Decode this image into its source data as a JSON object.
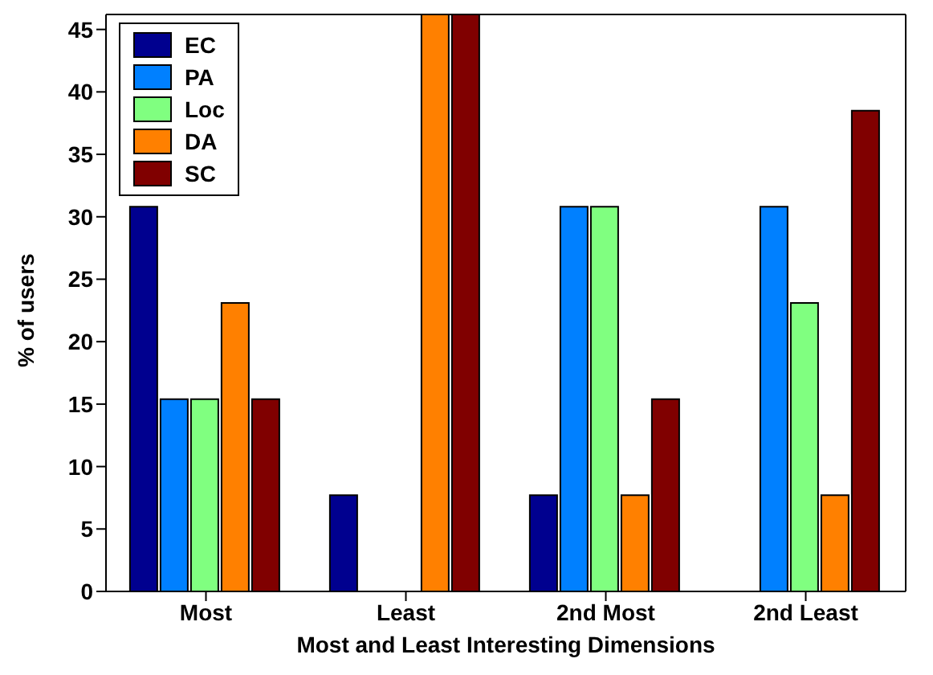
{
  "chart_data": {
    "type": "bar",
    "xlabel": "Most and Least Interesting Dimensions",
    "ylabel": "% of users",
    "categories": [
      "Most",
      "Least",
      "2nd Most",
      "2nd Least"
    ],
    "series": [
      {
        "name": "EC",
        "color": "#00008f",
        "values": [
          30.8,
          7.7,
          7.7,
          0
        ]
      },
      {
        "name": "PA",
        "color": "#0080ff",
        "values": [
          15.4,
          0,
          30.8,
          30.8
        ]
      },
      {
        "name": "Loc",
        "color": "#80ff80",
        "values": [
          15.4,
          0,
          30.8,
          23.1
        ]
      },
      {
        "name": "DA",
        "color": "#ff8000",
        "values": [
          23.1,
          46.2,
          7.7,
          7.7
        ]
      },
      {
        "name": "SC",
        "color": "#800000",
        "values": [
          15.4,
          46.2,
          15.4,
          38.5
        ]
      }
    ],
    "ylim": [
      0,
      46.2
    ],
    "yticks": [
      0,
      5,
      10,
      15,
      20,
      25,
      30,
      35,
      40,
      45
    ],
    "grid": false,
    "legend": "top left"
  }
}
